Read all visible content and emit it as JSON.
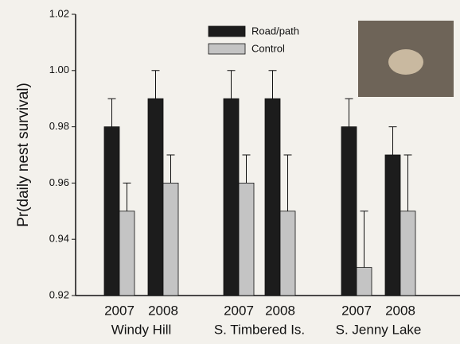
{
  "chart_data": {
    "type": "bar",
    "ylabel": "Pr(daily nest survival)",
    "categories": [
      "2007",
      "2008",
      "2007",
      "2008",
      "2007",
      "2008"
    ],
    "groups": [
      "Windy Hill",
      "S. Timbered Is.",
      "S. Jenny Lake"
    ],
    "series": [
      {
        "name": "Road/path",
        "color": "#1c1c1c",
        "values": [
          0.98,
          0.99,
          0.99,
          0.99,
          0.98,
          0.97
        ],
        "errors": [
          0.01,
          0.01,
          0.01,
          0.01,
          0.01,
          0.01
        ]
      },
      {
        "name": "Control",
        "color": "#c4c4c4",
        "values": [
          0.95,
          0.96,
          0.96,
          0.95,
          0.93,
          0.95
        ],
        "errors": [
          0.01,
          0.01,
          0.01,
          0.02,
          0.02,
          0.02
        ]
      }
    ],
    "ylim": [
      0.92,
      1.02
    ],
    "yticks": [
      0.92,
      0.94,
      0.96,
      0.98,
      {
        "value": 1,
        "label": "1.00"
      },
      1.02
    ]
  }
}
